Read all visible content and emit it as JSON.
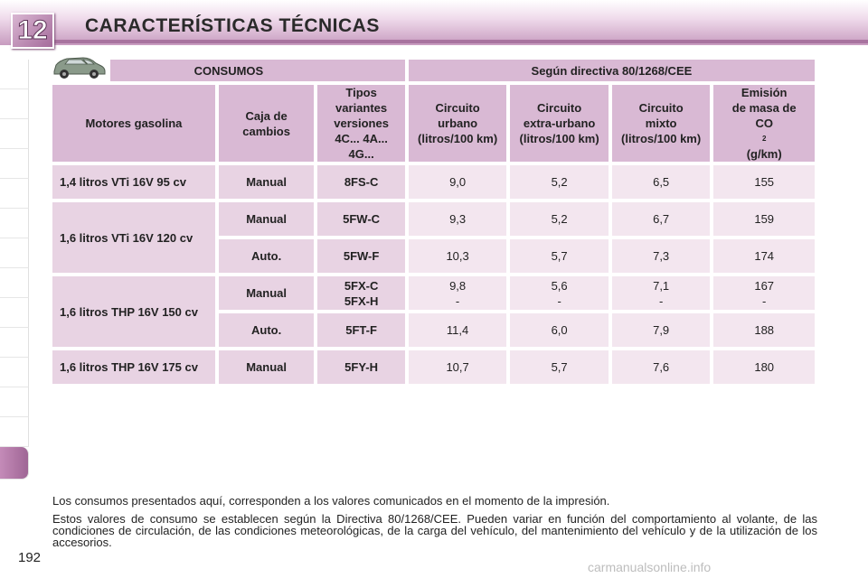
{
  "header": {
    "chapter": "12",
    "title": "CARACTERÍSTICAS TÉCNICAS"
  },
  "table": {
    "top_left": "CONSUMOS",
    "top_right": "Según directiva 80/1268/CEE",
    "columns": {
      "motor": "Motores gasolina",
      "caja_line1": "Caja de",
      "caja_line2": "cambios",
      "tipos_line1": "Tipos",
      "tipos_line2": "variantes",
      "tipos_line3": "versiones",
      "tipos_line4": "4C... 4A...",
      "tipos_line5": "4G...",
      "urbano_line1": "Circuito",
      "urbano_line2": "urbano",
      "urbano_line3": "(litros/100 km)",
      "extra_line1": "Circuito",
      "extra_line2": "extra-urbano",
      "extra_line3": "(litros/100 km)",
      "mixto_line1": "Circuito",
      "mixto_line2": "mixto",
      "mixto_line3": "(litros/100 km)",
      "emision_line1": "Emisión",
      "emision_line2": "de masa de",
      "emision_co": "CO",
      "emision_sub": "2",
      "emision_unit": " (g/km)"
    },
    "rows": [
      {
        "motor": "1,4 litros VTi 16V 95 cv",
        "caja": "Manual",
        "tipo": "8FS-C",
        "urbano": "9,0",
        "extra": "5,2",
        "mixto": "6,5",
        "co2": "155"
      },
      {
        "motor": "1,6 litros VTi 16V 120 cv",
        "caja": "Manual",
        "tipo": "5FW-C",
        "urbano": "9,3",
        "extra": "5,2",
        "mixto": "6,7",
        "co2": "159"
      },
      {
        "caja": "Auto.",
        "tipo": "5FW-F",
        "urbano": "10,3",
        "extra": "5,7",
        "mixto": "7,3",
        "co2": "174"
      },
      {
        "motor": "1,6 litros THP 16V 150 cv",
        "caja": "Manual",
        "tipo_a": "5FX-C",
        "tipo_b": "5FX-H",
        "urbano_a": "9,8",
        "urbano_b": "-",
        "extra_a": "5,6",
        "extra_b": "-",
        "mixto_a": "7,1",
        "mixto_b": "-",
        "co2_a": "167",
        "co2_b": "-"
      },
      {
        "caja": "Auto.",
        "tipo": "5FT-F",
        "urbano": "11,4",
        "extra": "6,0",
        "mixto": "7,9",
        "co2": "188"
      },
      {
        "motor": "1,6 litros THP 16V 175 cv",
        "caja": "Manual",
        "tipo": "5FY-H",
        "urbano": "10,7",
        "extra": "5,7",
        "mixto": "7,6",
        "co2": "180"
      }
    ]
  },
  "notes": {
    "p1": "Los consumos presentados aquí, corresponden a los valores comunicados en el momento de la impresión.",
    "p2": "Estos valores de consumo se establecen según la Directiva 80/1268/CEE. Pueden variar en función del comportamiento al volante, de las condiciones de circulación, de las condiciones meteorológicas, de la carga del vehículo, del mantenimiento del vehículo y de la utilización de los accesorios."
  },
  "page_number": "192",
  "watermark": "carmanualsonline.info",
  "colors": {
    "accent": "#a8739f",
    "header_cell": "#d9b9d4",
    "label_cell": "#e8d3e3",
    "value_cell": "#f3e6ef",
    "highlight": "#e8222a"
  },
  "icons": {
    "car": "car-icon"
  }
}
